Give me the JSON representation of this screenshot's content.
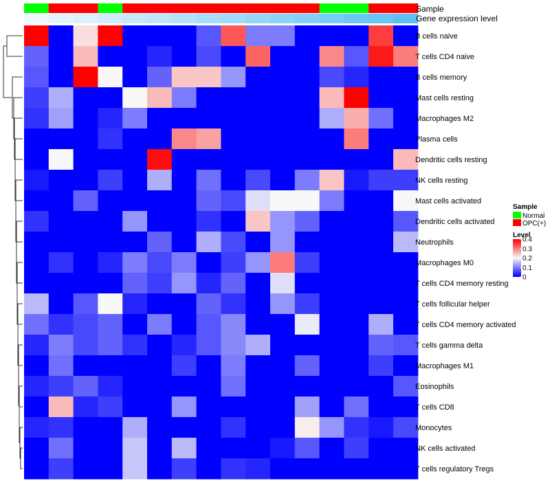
{
  "chart_data": {
    "type": "heatmap",
    "annotation_labels": {
      "sample": "Sample",
      "expression": "Gene expression level"
    },
    "sample_groups": [
      "Normal",
      "OPC(+)",
      "OPC(+)",
      "Normal",
      "OPC(+)",
      "OPC(+)",
      "OPC(+)",
      "OPC(+)",
      "OPC(+)",
      "OPC(+)",
      "OPC(+)",
      "OPC(+)",
      "Normal",
      "Normal",
      "OPC(+)",
      "OPC(+)"
    ],
    "expression_level": [
      0.0,
      0.07,
      0.13,
      0.2,
      0.27,
      0.33,
      0.4,
      0.47,
      0.53,
      0.6,
      0.67,
      0.73,
      0.8,
      0.87,
      0.93,
      1.0
    ],
    "rows": [
      "B cells naive",
      "T cells CD4 naive",
      "B cells memory",
      "Mast cells resting",
      "Macrophages M2",
      "Plasma cells",
      "Dendritic cells resting",
      "NK cells resting",
      "Mast cells activated",
      "Dendritic cells activated",
      "Neutrophils",
      "Macrophages M0",
      "T cells CD4 memory resting",
      "T cells follicular helper",
      "T cells CD4 memory activated",
      "T cells gamma delta",
      "Macrophages M1",
      "Eosinophils",
      "T cells CD8",
      "Monocytes",
      "NK cells activated",
      "T cells regulatory  Tregs"
    ],
    "values": [
      [
        0.4,
        0.0,
        0.22,
        0.4,
        0.0,
        0.0,
        0.0,
        0.07,
        0.33,
        0.1,
        0.1,
        0.0,
        0.0,
        0.0,
        0.35,
        0.0
      ],
      [
        0.08,
        0.0,
        0.25,
        0.0,
        0.0,
        0.03,
        0.0,
        0.06,
        0.0,
        0.32,
        0.0,
        0.0,
        0.29,
        0.07,
        0.38,
        0.3
      ],
      [
        0.07,
        0.0,
        0.4,
        0.2,
        0.0,
        0.08,
        0.24,
        0.24,
        0.12,
        0.0,
        0.0,
        0.0,
        0.06,
        0.03,
        0.0,
        0.0
      ],
      [
        0.05,
        0.14,
        0.0,
        0.0,
        0.2,
        0.25,
        0.1,
        0.0,
        0.0,
        0.0,
        0.0,
        0.0,
        0.25,
        0.4,
        0.0,
        0.0
      ],
      [
        0.04,
        0.13,
        0.0,
        0.03,
        0.1,
        0.0,
        0.0,
        0.0,
        0.0,
        0.0,
        0.0,
        0.0,
        0.14,
        0.26,
        0.09,
        0.0
      ],
      [
        0.0,
        0.0,
        0.0,
        0.04,
        0.0,
        0.0,
        0.29,
        0.27,
        0.0,
        0.0,
        0.0,
        0.0,
        0.0,
        0.3,
        0.0,
        0.0
      ],
      [
        0.0,
        0.2,
        0.0,
        0.0,
        0.0,
        0.39,
        0.0,
        0.0,
        0.0,
        0.0,
        0.0,
        0.0,
        0.0,
        0.0,
        0.0,
        0.25
      ],
      [
        0.02,
        0.0,
        0.0,
        0.05,
        0.0,
        0.14,
        0.0,
        0.09,
        0.0,
        0.06,
        0.0,
        0.1,
        0.24,
        0.02,
        0.05,
        0.05
      ],
      [
        0.0,
        0.0,
        0.08,
        0.0,
        0.0,
        0.0,
        0.0,
        0.08,
        0.06,
        0.18,
        0.2,
        0.2,
        0.1,
        0.0,
        0.0,
        0.2
      ],
      [
        0.04,
        0.0,
        0.0,
        0.0,
        0.12,
        0.0,
        0.0,
        0.04,
        0.0,
        0.24,
        0.12,
        0.08,
        0.0,
        0.0,
        0.0,
        0.07
      ],
      [
        0.0,
        0.0,
        0.0,
        0.0,
        0.0,
        0.08,
        0.0,
        0.14,
        0.06,
        0.0,
        0.12,
        0.0,
        0.0,
        0.0,
        0.0,
        0.15
      ],
      [
        0.0,
        0.04,
        0.0,
        0.03,
        0.1,
        0.06,
        0.1,
        0.0,
        0.05,
        0.12,
        0.3,
        0.05,
        0.0,
        0.0,
        0.0,
        0.0
      ],
      [
        0.0,
        0.0,
        0.0,
        0.0,
        0.08,
        0.05,
        0.12,
        0.03,
        0.08,
        0.0,
        0.18,
        0.0,
        0.0,
        0.0,
        0.0,
        0.0
      ],
      [
        0.15,
        0.0,
        0.07,
        0.2,
        0.03,
        0.0,
        0.0,
        0.08,
        0.04,
        0.0,
        0.12,
        0.05,
        0.0,
        0.0,
        0.0,
        0.0
      ],
      [
        0.09,
        0.04,
        0.06,
        0.08,
        0.0,
        0.1,
        0.0,
        0.07,
        0.11,
        0.0,
        0.0,
        0.19,
        0.0,
        0.0,
        0.14,
        0.0
      ],
      [
        0.03,
        0.1,
        0.06,
        0.08,
        0.04,
        0.0,
        0.03,
        0.07,
        0.11,
        0.14,
        0.0,
        0.0,
        0.0,
        0.0,
        0.08,
        0.07
      ],
      [
        0.0,
        0.09,
        0.0,
        0.0,
        0.0,
        0.0,
        0.05,
        0.0,
        0.1,
        0.0,
        0.0,
        0.08,
        0.0,
        0.0,
        0.05,
        0.0
      ],
      [
        0.03,
        0.05,
        0.08,
        0.03,
        0.0,
        0.0,
        0.0,
        0.0,
        0.09,
        0.0,
        0.0,
        0.0,
        0.0,
        0.0,
        0.0,
        0.07
      ],
      [
        0.0,
        0.25,
        0.03,
        0.05,
        0.0,
        0.0,
        0.12,
        0.0,
        0.0,
        0.0,
        0.0,
        0.13,
        0.0,
        0.09,
        0.0,
        0.0
      ],
      [
        0.03,
        0.04,
        0.0,
        0.0,
        0.14,
        0.0,
        0.0,
        0.0,
        0.04,
        0.0,
        0.0,
        0.21,
        0.12,
        0.04,
        0.02,
        0.06
      ],
      [
        0.0,
        0.09,
        0.0,
        0.0,
        0.16,
        0.0,
        0.15,
        0.0,
        0.0,
        0.0,
        0.02,
        0.07,
        0.0,
        0.05,
        0.0,
        0.0
      ],
      [
        0.0,
        0.05,
        0.0,
        0.0,
        0.16,
        0.0,
        0.05,
        0.0,
        0.04,
        0.03,
        0.0,
        0.0,
        0.0,
        0.0,
        0.0,
        0.0
      ]
    ],
    "color_scale": {
      "min": 0,
      "mid": 0.2,
      "max": 0.4,
      "low_color": "#0000ff",
      "mid_color": "#f8f8f8",
      "high_color": "#ff0000"
    },
    "legend": {
      "sample_title": "Sample",
      "sample_entries": [
        {
          "label": "Normal",
          "color": "#00ff00"
        },
        {
          "label": "OPC(+)",
          "color": "#ff0000"
        }
      ],
      "level_title": "Level",
      "level_ticks": [
        {
          "value": 0.4,
          "label": "0.4"
        },
        {
          "value": 0.3,
          "label": "0.3"
        },
        {
          "value": 0.2,
          "label": "0.2"
        },
        {
          "value": 0.1,
          "label": "0.1"
        },
        {
          "value": 0.0,
          "label": "0"
        }
      ]
    },
    "expression_colors": {
      "light": "#eef8ff",
      "dark": "#5bc1f4"
    },
    "dendrogram_position": "left"
  }
}
